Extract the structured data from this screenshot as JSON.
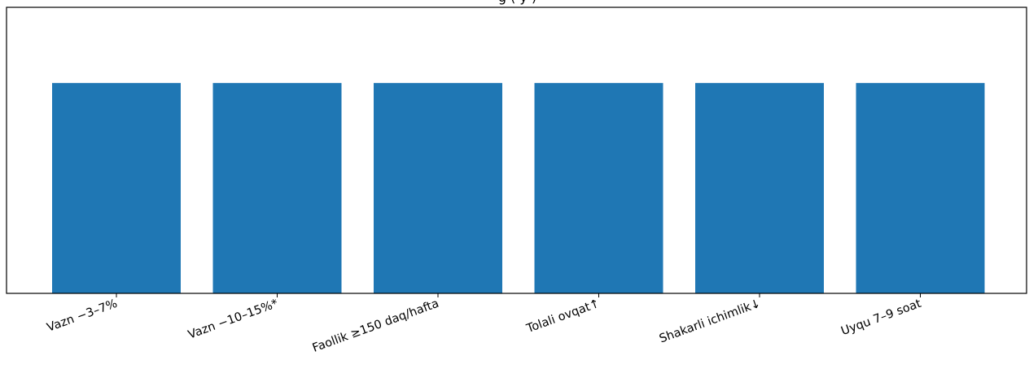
{
  "chart_data": {
    "type": "bar",
    "title": "                     g       (                                    y     )",
    "categories": [
      "Vazn −3–7%",
      "Vazn −10–15%*",
      "Faollik ≥150 daq/hafta",
      "Tolali ovqat↑",
      "Shakarli ichimlik↓",
      "Uyqu 7–9 soat"
    ],
    "values": [
      1,
      1,
      1,
      1,
      1,
      1
    ],
    "ylim": [
      0,
      1.36
    ],
    "xlabel": "",
    "ylabel": "",
    "grid": false,
    "bar_color": "#1f77b4"
  }
}
